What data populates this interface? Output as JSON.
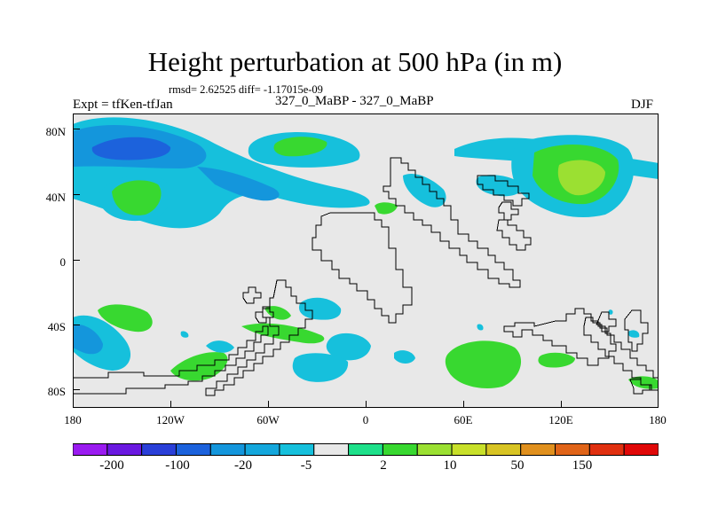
{
  "title": "Height perturbation at 500 hPa (in m)",
  "stats": "rmsd= 2.62525 diff= -1.17015e-09",
  "left_label": "Expt = tfKen-tfJan",
  "center_label": "327_0_MaBP - 327_0_MaBP",
  "right_label": "DJF",
  "y_ticks": [
    "80N",
    "40N",
    "0",
    "40S",
    "80S"
  ],
  "x_ticks": [
    "180",
    "120W",
    "60W",
    "0",
    "60E",
    "120E",
    "180"
  ],
  "colorbar": {
    "colors": [
      "#9a1bf0",
      "#6a18e0",
      "#2a3fd8",
      "#1c62dc",
      "#1496dc",
      "#14a7dc",
      "#16c0dc",
      "#e8e8e8",
      "#1ee08a",
      "#38d830",
      "#9be032",
      "#c8e02a",
      "#d8c424",
      "#e0901e",
      "#e06418",
      "#e03010",
      "#e00808"
    ],
    "labels": [
      "-200",
      "-100",
      "-20",
      "-5",
      "2",
      "10",
      "50",
      "150"
    ]
  },
  "colors": {
    "background": "#e8e8e8",
    "blue_dark": "#1c62dc",
    "blue_mid": "#1496dc",
    "cyan": "#16c0dc",
    "green_light": "#1ee08a",
    "green": "#38d830",
    "yellow_green": "#9be032"
  }
}
